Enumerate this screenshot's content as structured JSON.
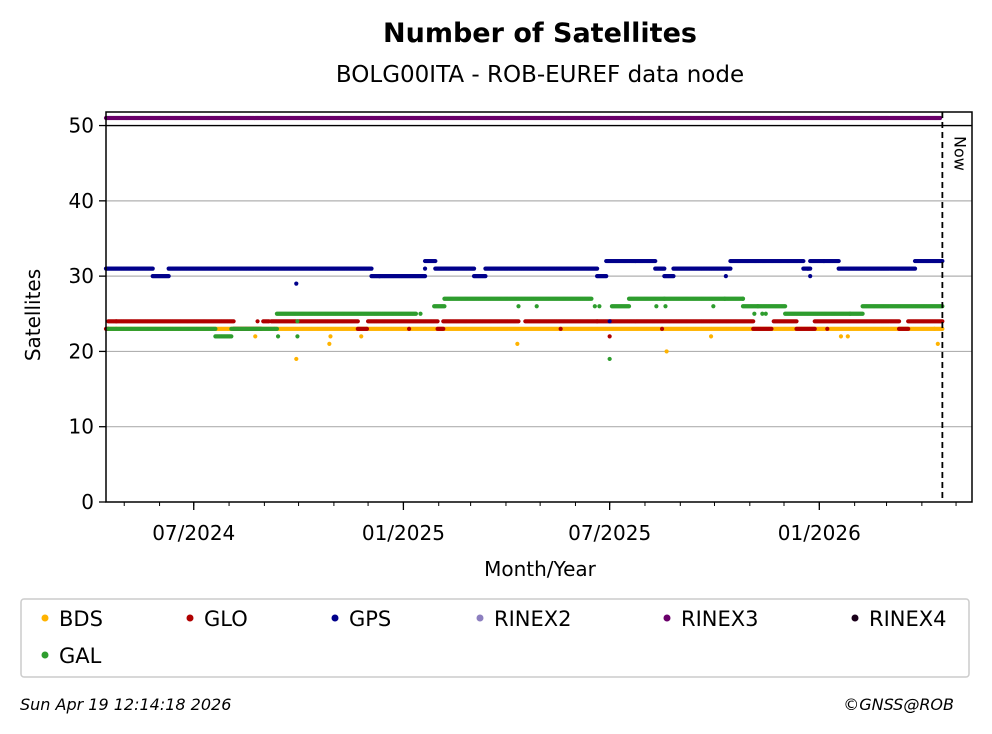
{
  "chart_data": {
    "type": "scatter",
    "title": "Number of Satellites",
    "subtitle": "BOLG00ITA - ROB-EUREF data node",
    "xlabel": "Month/Year",
    "ylabel": "Satellites",
    "xlim": [
      "2024-04-15",
      "2026-05-15"
    ],
    "ylim": [
      0,
      51.8
    ],
    "yticks": [
      0,
      10,
      20,
      30,
      40,
      50
    ],
    "xticks": [
      {
        "date": "2024-07-01",
        "label": "07/2024"
      },
      {
        "date": "2025-01-01",
        "label": "01/2025"
      },
      {
        "date": "2025-07-01",
        "label": "07/2025"
      },
      {
        "date": "2026-01-01",
        "label": "01/2026"
      }
    ],
    "grid": "y",
    "now_marker": {
      "date": "2026-04-19",
      "label": "Now"
    },
    "legend_location": "below",
    "series": [
      {
        "name": "BDS",
        "color": "#ffb300",
        "segments": [
          {
            "start": "2024-04-17",
            "end": "2024-04-24",
            "value": 23
          },
          {
            "start": "2024-04-24",
            "end": "2024-09-10",
            "value": 23
          },
          {
            "start": "2024-09-10",
            "end": "2026-04-12",
            "value": 23
          },
          {
            "start": "2026-04-12",
            "end": "2026-04-19",
            "value": 23
          }
        ],
        "points": [
          {
            "date": "2024-09-29",
            "value": 19
          },
          {
            "date": "2024-10-28",
            "value": 21
          },
          {
            "date": "2024-10-29",
            "value": 22
          },
          {
            "date": "2024-08-24",
            "value": 22
          },
          {
            "date": "2024-11-25",
            "value": 22
          },
          {
            "date": "2025-04-11",
            "value": 21
          },
          {
            "date": "2025-08-20",
            "value": 20
          },
          {
            "date": "2025-09-28",
            "value": 22
          },
          {
            "date": "2026-01-20",
            "value": 22
          },
          {
            "date": "2026-01-26",
            "value": 22
          },
          {
            "date": "2026-04-15",
            "value": 21
          }
        ]
      },
      {
        "name": "GLO",
        "color": "#b00000",
        "segments": [
          {
            "start": "2024-04-15",
            "end": "2024-04-17",
            "value": 23
          },
          {
            "start": "2024-04-17",
            "end": "2024-08-05",
            "value": 24
          },
          {
            "start": "2024-08-05",
            "end": "2024-08-29",
            "value": 23
          },
          {
            "start": "2024-08-31",
            "end": "2024-09-05",
            "value": 24
          },
          {
            "start": "2024-09-07",
            "end": "2024-11-22",
            "value": 24
          },
          {
            "start": "2024-11-22",
            "end": "2024-11-30",
            "value": 23
          },
          {
            "start": "2024-12-01",
            "end": "2025-01-31",
            "value": 24
          },
          {
            "start": "2025-01-31",
            "end": "2025-02-05",
            "value": 23
          },
          {
            "start": "2025-02-05",
            "end": "2025-04-12",
            "value": 24
          },
          {
            "start": "2025-04-18",
            "end": "2025-06-20",
            "value": 24
          },
          {
            "start": "2025-06-20",
            "end": "2025-07-02",
            "value": 24
          },
          {
            "start": "2025-07-02",
            "end": "2025-11-04",
            "value": 24
          },
          {
            "start": "2025-11-04",
            "end": "2025-11-20",
            "value": 23
          },
          {
            "start": "2025-11-22",
            "end": "2025-12-12",
            "value": 24
          },
          {
            "start": "2025-12-12",
            "end": "2025-12-28",
            "value": 23
          },
          {
            "start": "2025-12-28",
            "end": "2026-03-12",
            "value": 24
          },
          {
            "start": "2026-03-12",
            "end": "2026-03-20",
            "value": 23
          },
          {
            "start": "2026-03-20",
            "end": "2026-04-19",
            "value": 24
          }
        ],
        "points": [
          {
            "date": "2024-04-24",
            "value": 24
          },
          {
            "date": "2024-08-26",
            "value": 24
          },
          {
            "date": "2025-01-06",
            "value": 23
          },
          {
            "date": "2025-05-19",
            "value": 23
          },
          {
            "date": "2025-07-01",
            "value": 22
          },
          {
            "date": "2025-08-16",
            "value": 23
          },
          {
            "date": "2026-01-08",
            "value": 23
          }
        ]
      },
      {
        "name": "GPS",
        "color": "#00008b",
        "segments": [
          {
            "start": "2024-04-15",
            "end": "2024-05-26",
            "value": 31
          },
          {
            "start": "2024-05-26",
            "end": "2024-06-09",
            "value": 30
          },
          {
            "start": "2024-06-09",
            "end": "2024-12-04",
            "value": 31
          },
          {
            "start": "2024-12-04",
            "end": "2025-01-20",
            "value": 30
          },
          {
            "start": "2025-01-20",
            "end": "2025-01-29",
            "value": 32
          },
          {
            "start": "2025-01-29",
            "end": "2025-03-04",
            "value": 31
          },
          {
            "start": "2025-03-04",
            "end": "2025-03-14",
            "value": 30
          },
          {
            "start": "2025-03-14",
            "end": "2025-06-20",
            "value": 31
          },
          {
            "start": "2025-06-20",
            "end": "2025-06-28",
            "value": 30
          },
          {
            "start": "2025-06-28",
            "end": "2025-08-10",
            "value": 32
          },
          {
            "start": "2025-08-10",
            "end": "2025-08-18",
            "value": 31
          },
          {
            "start": "2025-08-18",
            "end": "2025-08-26",
            "value": 30
          },
          {
            "start": "2025-08-26",
            "end": "2025-10-15",
            "value": 31
          },
          {
            "start": "2025-10-15",
            "end": "2025-12-18",
            "value": 32
          },
          {
            "start": "2025-12-18",
            "end": "2025-12-24",
            "value": 31
          },
          {
            "start": "2025-12-24",
            "end": "2026-01-05",
            "value": 32
          },
          {
            "start": "2026-01-05",
            "end": "2026-01-18",
            "value": 32
          },
          {
            "start": "2026-01-18",
            "end": "2026-03-26",
            "value": 31
          },
          {
            "start": "2026-03-26",
            "end": "2026-04-19",
            "value": 32
          }
        ],
        "points": [
          {
            "date": "2024-09-29",
            "value": 29
          },
          {
            "date": "2024-12-11",
            "value": 30
          },
          {
            "date": "2025-01-20",
            "value": 31
          },
          {
            "date": "2025-10-11",
            "value": 30
          },
          {
            "date": "2025-12-24",
            "value": 30
          },
          {
            "date": "2025-12-22",
            "value": 31
          },
          {
            "date": "2025-07-01",
            "value": 24
          }
        ]
      },
      {
        "name": "RINEX2",
        "color": "#8c7fbf",
        "segments": [],
        "points": []
      },
      {
        "name": "RINEX3",
        "color": "#6a006a",
        "segments": [
          {
            "start": "2024-04-15",
            "end": "2026-04-17",
            "value": 51
          }
        ],
        "points": []
      },
      {
        "name": "RINEX4",
        "color": "#1a001a",
        "segments": [],
        "points": []
      },
      {
        "name": "GAL",
        "color": "#2e9d2e",
        "segments": [
          {
            "start": "2024-04-17",
            "end": "2024-07-20",
            "value": 23
          },
          {
            "start": "2024-07-20",
            "end": "2024-08-03",
            "value": 22
          },
          {
            "start": "2024-08-03",
            "end": "2024-09-12",
            "value": 23
          },
          {
            "start": "2024-09-12",
            "end": "2025-01-12",
            "value": 25
          },
          {
            "start": "2025-01-28",
            "end": "2025-02-06",
            "value": 26
          },
          {
            "start": "2025-02-06",
            "end": "2025-06-15",
            "value": 27
          },
          {
            "start": "2025-07-03",
            "end": "2025-07-18",
            "value": 26
          },
          {
            "start": "2025-07-18",
            "end": "2025-08-18",
            "value": 27
          },
          {
            "start": "2025-08-18",
            "end": "2025-10-10",
            "value": 27
          },
          {
            "start": "2025-10-10",
            "end": "2025-10-26",
            "value": 27
          },
          {
            "start": "2025-10-26",
            "end": "2025-12-02",
            "value": 26
          },
          {
            "start": "2025-12-02",
            "end": "2026-01-28",
            "value": 25
          },
          {
            "start": "2026-01-28",
            "end": "2026-02-08",
            "value": 25
          },
          {
            "start": "2026-02-08",
            "end": "2026-04-19",
            "value": 26
          }
        ],
        "points": [
          {
            "date": "2024-09-13",
            "value": 22
          },
          {
            "date": "2024-09-30",
            "value": 22
          },
          {
            "date": "2024-09-30",
            "value": 24
          },
          {
            "date": "2025-01-16",
            "value": 25
          },
          {
            "date": "2025-04-12",
            "value": 26
          },
          {
            "date": "2025-04-28",
            "value": 26
          },
          {
            "date": "2025-06-18",
            "value": 26
          },
          {
            "date": "2025-06-22",
            "value": 26
          },
          {
            "date": "2025-07-01",
            "value": 19
          },
          {
            "date": "2025-08-11",
            "value": 26
          },
          {
            "date": "2025-08-19",
            "value": 26
          },
          {
            "date": "2025-09-30",
            "value": 26
          },
          {
            "date": "2025-10-26",
            "value": 27
          },
          {
            "date": "2025-11-05",
            "value": 25
          },
          {
            "date": "2025-11-08",
            "value": 26
          },
          {
            "date": "2025-11-12",
            "value": 25
          },
          {
            "date": "2025-11-15",
            "value": 25
          }
        ]
      }
    ]
  },
  "footer": {
    "timestamp": "Sun Apr 19 12:14:18 2026",
    "credit": "©GNSS@ROB"
  }
}
